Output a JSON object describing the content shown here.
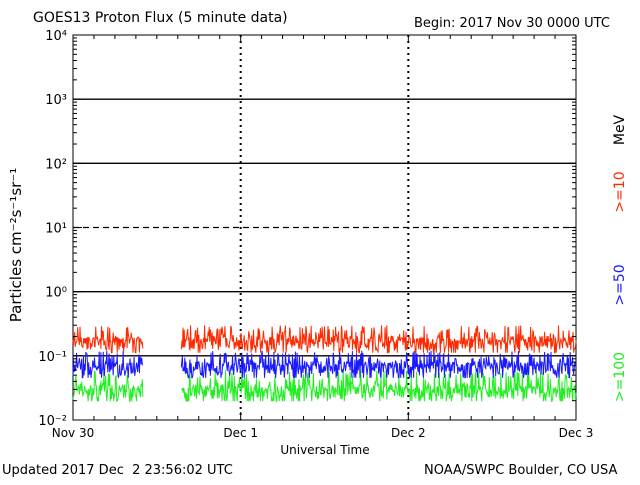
{
  "header": {
    "title": "GOES13 Proton Flux (5 minute data)",
    "begin": "Begin: 2017 Nov 30 0000 UTC"
  },
  "footer": {
    "updated": "Updated 2017 Dec  2 23:56:02 UTC",
    "source": "NOAA/SWPC Boulder, CO USA"
  },
  "chart_data": {
    "type": "line",
    "title": "GOES13 Proton Flux (5 minute data)",
    "xlabel": "Universal Time",
    "ylabel": "Particles cm⁻²s⁻¹sr⁻¹",
    "yscale": "log",
    "ylim": [
      0.01,
      10000
    ],
    "y_ticks": [
      "10⁻²",
      "10⁻¹",
      "10⁰",
      "10¹",
      "10²",
      "10³",
      "10⁴"
    ],
    "xlim": [
      "2017-11-30 00:00",
      "2017-12-03 00:00"
    ],
    "x_ticks": [
      "Nov 30",
      "Dec 1",
      "Dec 2",
      "Dec 3"
    ],
    "data_gap": [
      "2017-11-30 10:00",
      "2017-11-30 15:30"
    ],
    "reference_lines": [
      {
        "value": 10,
        "style": "dashed"
      },
      {
        "value": 1000,
        "style": "solid"
      },
      {
        "value": 100,
        "style": "solid"
      },
      {
        "value": 1,
        "style": "solid"
      },
      {
        "value": 0.1,
        "style": "solid"
      }
    ],
    "series": [
      {
        "name": ">=10",
        "unit": "MeV",
        "color": "#ff2a00",
        "baseline": 0.16,
        "spikes_to": 0.3
      },
      {
        "name": ">=50",
        "color": "#1a1aff",
        "baseline": 0.065,
        "spikes_to": 0.12
      },
      {
        "name": ">=100",
        "color": "#22ee22",
        "baseline": 0.028,
        "spikes_to": 0.06
      }
    ]
  }
}
